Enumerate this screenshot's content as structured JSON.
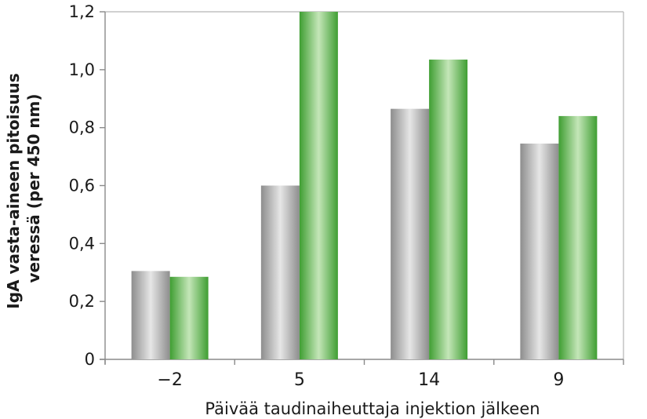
{
  "chart_data": {
    "type": "bar",
    "categories": [
      "−2",
      "5",
      "14",
      "9"
    ],
    "series": [
      {
        "values": [
          0.305,
          0.6,
          0.865,
          0.745
        ],
        "color": "#a9a9a9"
      },
      {
        "values": [
          0.285,
          1.2,
          1.035,
          0.84
        ],
        "color": "#4fae3f"
      }
    ],
    "yticks": [
      0,
      0.2,
      0.4,
      0.6,
      0.8,
      1.0,
      1.2
    ],
    "ytick_labels": [
      "0",
      "0,2",
      "0,4",
      "0,6",
      "0,8",
      "1,0",
      "1,2"
    ],
    "ylim": [
      0,
      1.2
    ],
    "xlabel": "Päivää taudinaiheuttaja injektion jälkeen",
    "ylabel_lines": [
      "IgA vasta-aineen pitoisuus",
      "veressä (per 450 nm)"
    ],
    "grid": false,
    "legend": "none"
  }
}
